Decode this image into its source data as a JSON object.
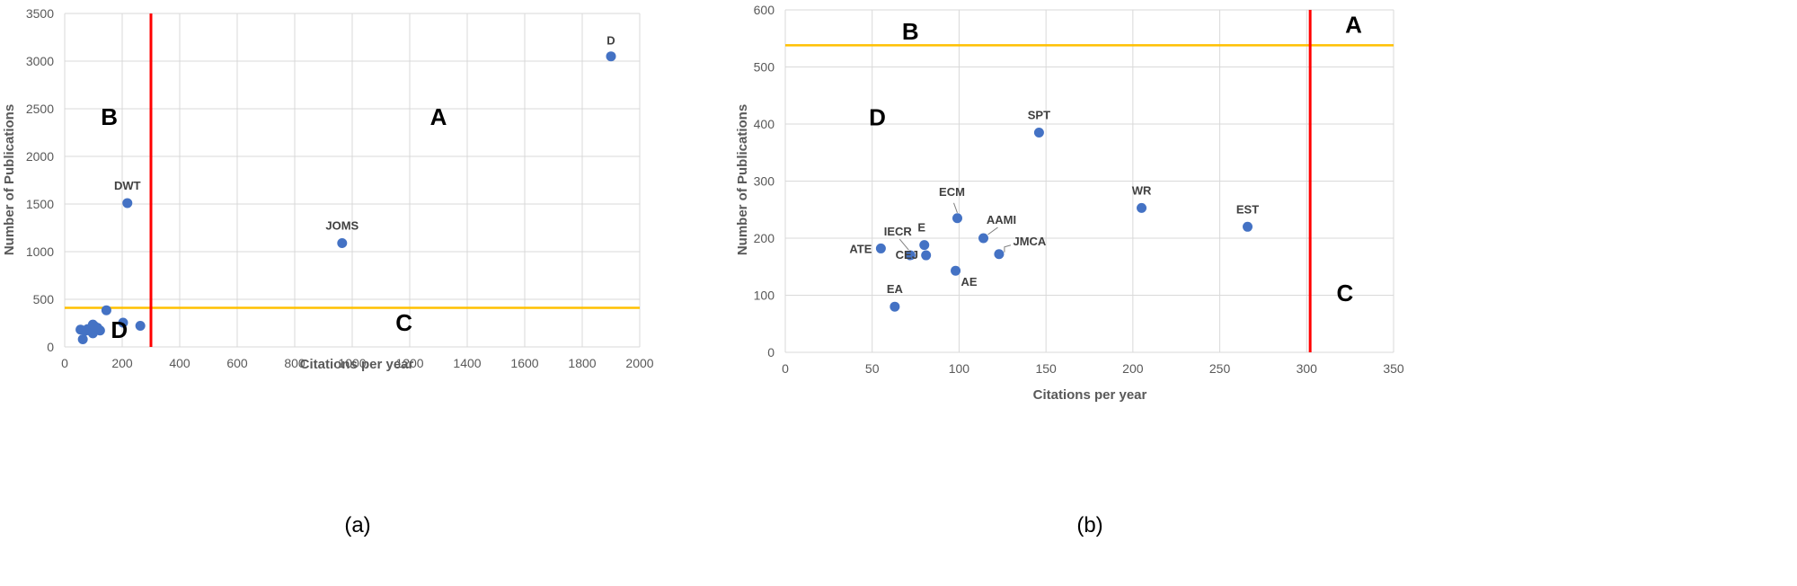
{
  "colors": {
    "point": "#4472c4",
    "vline": "#ff0000",
    "hline": "#ffc000",
    "grid": "#d9d9d9",
    "text": "#595959"
  },
  "chart_data": [
    {
      "type": "scatter",
      "caption": "(a)",
      "xlabel": "Citations per year",
      "ylabel": "Number of Publications",
      "xlim": [
        0,
        2000
      ],
      "ylim": [
        0,
        3500
      ],
      "xticks": [
        0,
        200,
        400,
        600,
        800,
        1000,
        1200,
        1400,
        1600,
        1800,
        2000
      ],
      "yticks": [
        0,
        500,
        1000,
        1500,
        2000,
        2500,
        3000,
        3500
      ],
      "grid": true,
      "vline": 300,
      "hline": 410,
      "quadrants": [
        {
          "label": "A",
          "x": 1300,
          "y": 2330
        },
        {
          "label": "B",
          "x": 155,
          "y": 2330
        },
        {
          "label": "C",
          "x": 1180,
          "y": 170
        },
        {
          "label": "D",
          "x": 190,
          "y": 95
        }
      ],
      "points": [
        {
          "x": 1900,
          "y": 3050,
          "label": "D"
        },
        {
          "x": 218,
          "y": 1510,
          "label": "DWT"
        },
        {
          "x": 965,
          "y": 1090,
          "label": "JOMS"
        },
        {
          "x": 145,
          "y": 385,
          "label": ""
        },
        {
          "x": 203,
          "y": 255,
          "label": ""
        },
        {
          "x": 263,
          "y": 222,
          "label": ""
        },
        {
          "x": 55,
          "y": 182,
          "label": ""
        },
        {
          "x": 63,
          "y": 80,
          "label": ""
        },
        {
          "x": 72,
          "y": 170,
          "label": ""
        },
        {
          "x": 80,
          "y": 188,
          "label": ""
        },
        {
          "x": 90,
          "y": 170,
          "label": ""
        },
        {
          "x": 98,
          "y": 235,
          "label": ""
        },
        {
          "x": 98,
          "y": 143,
          "label": ""
        },
        {
          "x": 114,
          "y": 200,
          "label": ""
        },
        {
          "x": 123,
          "y": 172,
          "label": ""
        },
        {
          "x": 105,
          "y": 215,
          "label": ""
        }
      ]
    },
    {
      "type": "scatter",
      "caption": "(b)",
      "xlabel": "Citations per year",
      "ylabel": "Number of Publications",
      "xlim": [
        0,
        350
      ],
      "ylim": [
        0,
        600
      ],
      "xticks": [
        0,
        50,
        100,
        150,
        200,
        250,
        300,
        350
      ],
      "yticks": [
        0,
        100,
        200,
        300,
        400,
        500,
        600
      ],
      "grid": true,
      "vline": 302,
      "hline": 538,
      "quadrants": [
        {
          "label": "A",
          "x": 327,
          "y": 560
        },
        {
          "label": "B",
          "x": 72,
          "y": 548
        },
        {
          "label": "C",
          "x": 322,
          "y": 90
        },
        {
          "label": "D",
          "x": 53,
          "y": 398
        }
      ],
      "points": [
        {
          "x": 146,
          "y": 385,
          "label": "SPT"
        },
        {
          "x": 205,
          "y": 253,
          "label": "WR"
        },
        {
          "x": 266,
          "y": 220,
          "label": "EST"
        },
        {
          "x": 99,
          "y": 235,
          "label": "ECM"
        },
        {
          "x": 114,
          "y": 200,
          "label": "AAMI"
        },
        {
          "x": 123,
          "y": 172,
          "label": "JMCA"
        },
        {
          "x": 55,
          "y": 182,
          "label": "ATE"
        },
        {
          "x": 72,
          "y": 170,
          "label": "IECR"
        },
        {
          "x": 80,
          "y": 188,
          "label": "E"
        },
        {
          "x": 81,
          "y": 170,
          "label": "CEJ"
        },
        {
          "x": 98,
          "y": 143,
          "label": "AE"
        },
        {
          "x": 63,
          "y": 80,
          "label": "EA"
        }
      ]
    }
  ]
}
